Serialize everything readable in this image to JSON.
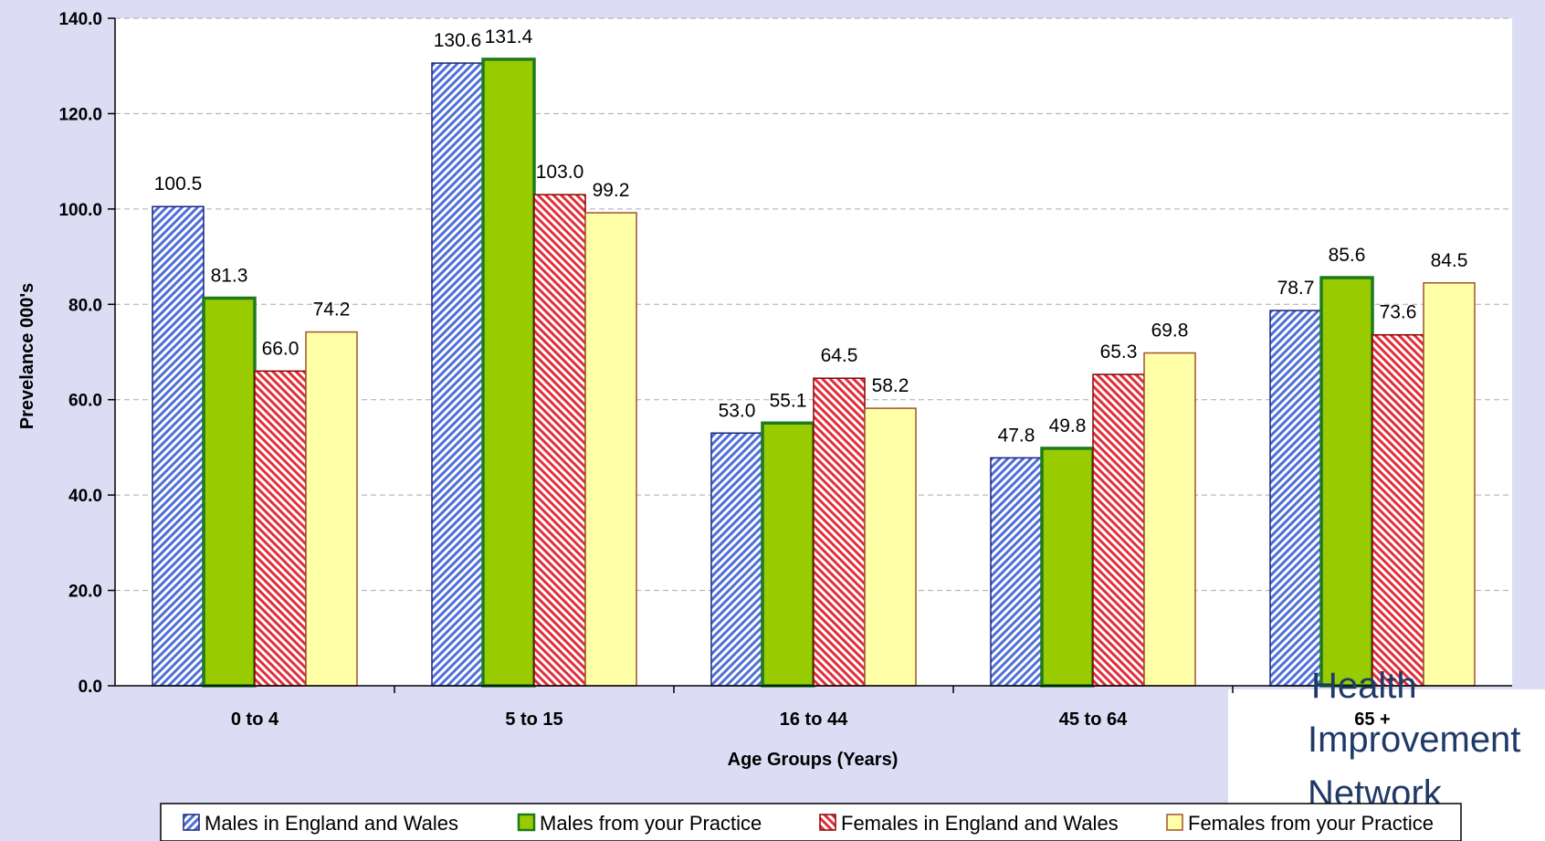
{
  "colors": {
    "background": "#dcdcf5",
    "plot_background": "#ffffff",
    "males_ew_fill": "#4f6fd8",
    "males_ew_stroke": "#1a237e",
    "males_practice_fill": "#99cc00",
    "males_practice_stroke": "#1f7a1f",
    "females_ew_fill": "#e0303a",
    "females_ew_stroke": "#8b0000",
    "females_practice_fill": "#ffffa8",
    "females_practice_stroke": "#a0522d",
    "grid": "#aaaaaa",
    "logo": "#1f3a68"
  },
  "logo": {
    "lines": [
      "Health",
      "Improvement",
      "Network"
    ]
  },
  "chart_data": {
    "type": "bar",
    "title": "",
    "xlabel": "Age Groups (Years)",
    "ylabel": "Prevelance 000's",
    "ylim": [
      0,
      140
    ],
    "yticks": [
      "0.0",
      "20.0",
      "40.0",
      "60.0",
      "80.0",
      "100.0",
      "120.0",
      "140.0"
    ],
    "grid": "horizontal dashed",
    "legend_position": "bottom",
    "categories": [
      "0 to 4",
      "5 to 15",
      "16 to 44",
      "45 to 64",
      "65 +"
    ],
    "series": [
      {
        "name": "Males in England and Wales",
        "values": [
          100.5,
          130.6,
          53.0,
          47.8,
          78.7
        ],
        "labels": [
          "100.5",
          "130.6",
          "53.0",
          "47.8",
          "78.7"
        ],
        "style": "hatch-blue"
      },
      {
        "name": "Males from your Practice",
        "values": [
          81.3,
          131.4,
          55.1,
          49.8,
          85.6
        ],
        "labels": [
          "81.3",
          "131.4",
          "55.1",
          "49.8",
          "85.6"
        ],
        "style": "solid-green"
      },
      {
        "name": "Females in England and Wales",
        "values": [
          66.0,
          103.0,
          64.5,
          65.3,
          73.6
        ],
        "labels": [
          "66.0",
          "103.0",
          "64.5",
          "65.3",
          "73.6"
        ],
        "style": "hatch-red"
      },
      {
        "name": "Females from your Practice",
        "values": [
          74.2,
          99.2,
          58.2,
          69.8,
          84.5
        ],
        "labels": [
          "74.2",
          "99.2",
          "58.2",
          "69.8",
          "84.5"
        ],
        "style": "solid-yellow"
      }
    ]
  }
}
